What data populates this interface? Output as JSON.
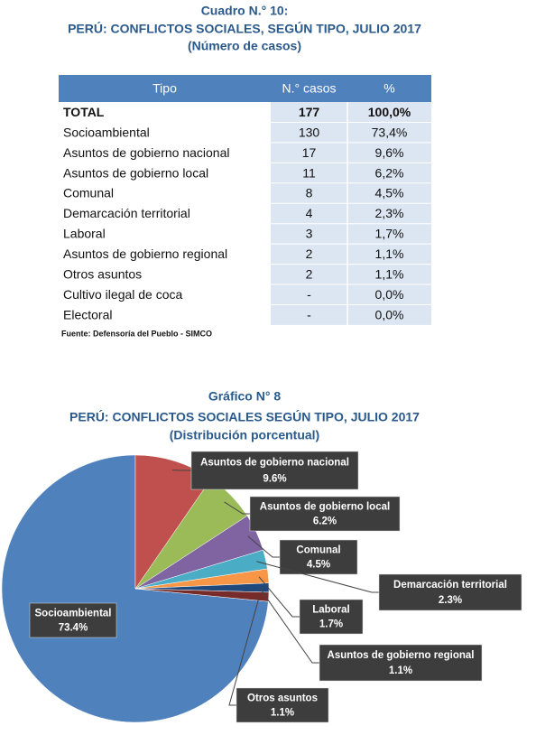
{
  "header": {
    "label": "Cuadro N.° 10:",
    "title": "PERÚ: CONFLICTOS SOCIALES, SEGÚN TIPO, JULIO 2017",
    "subtitle": "(Número de casos)"
  },
  "table": {
    "columns": [
      "Tipo",
      "N.° casos",
      "%"
    ],
    "rows": [
      [
        "TOTAL",
        "177",
        "100,0%"
      ],
      [
        "Socioambiental",
        "130",
        "73,4%"
      ],
      [
        "Asuntos de gobierno nacional",
        "17",
        "9,6%"
      ],
      [
        "Asuntos de gobierno local",
        "11",
        "6,2%"
      ],
      [
        "Comunal",
        "8",
        "4,5%"
      ],
      [
        "Demarcación territorial",
        "4",
        "2,3%"
      ],
      [
        "Laboral",
        "3",
        "1,7%"
      ],
      [
        "Asuntos de gobierno regional",
        "2",
        "1,1%"
      ],
      [
        "Otros asuntos",
        "2",
        "1,1%"
      ],
      [
        "Cultivo ilegal de coca",
        "-",
        "0,0%"
      ],
      [
        "Electoral",
        "-",
        "0,0%"
      ]
    ],
    "source": "Fuente: Defensoría del Pueblo - SIMCO"
  },
  "chart_data": {
    "type": "pie",
    "label": "Gráfico N° 8",
    "title": "PERÚ: CONFLICTOS SOCIALES SEGÚN TIPO, JULIO 2017",
    "subtitle": "(Distribución porcentual)",
    "categories": [
      "Socioambiental",
      "Asuntos de gobierno nacional",
      "Asuntos de gobierno local",
      "Comunal",
      "Demarcación territorial",
      "Laboral",
      "Asuntos de gobierno regional",
      "Otros asuntos"
    ],
    "values": [
      73.4,
      9.6,
      6.2,
      4.5,
      2.3,
      1.7,
      1.1,
      1.1
    ],
    "value_labels": [
      "73.4%",
      "9.6%",
      "6.2%",
      "4.5%",
      "2.3%",
      "1.7%",
      "1.1%",
      "1.1%"
    ],
    "colors": [
      "#4f81bd",
      "#c0504d",
      "#9bbb59",
      "#8064a2",
      "#4bacc6",
      "#f79646",
      "#1f497d",
      "#772c2a"
    ]
  }
}
